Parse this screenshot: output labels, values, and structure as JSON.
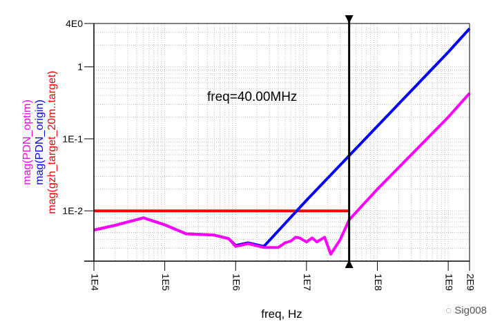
{
  "chart_data": {
    "type": "line",
    "xlabel": "freq, Hz",
    "xscale": "log",
    "yscale": "log",
    "xlim": [
      10000,
      2000000000
    ],
    "ylim": [
      0.002,
      4
    ],
    "x_ticks": [
      {
        "value": 10000,
        "label": "1E4"
      },
      {
        "value": 100000,
        "label": "1E5"
      },
      {
        "value": 1000000,
        "label": "1E6"
      },
      {
        "value": 10000000,
        "label": "1E7"
      },
      {
        "value": 100000000,
        "label": "1E8"
      },
      {
        "value": 1000000000,
        "label": "1E9"
      },
      {
        "value": 2000000000,
        "label": "2E9"
      }
    ],
    "y_ticks": [
      {
        "value": 4,
        "label": "4E0"
      },
      {
        "value": 1,
        "label": "1"
      },
      {
        "value": 0.1,
        "label": "1E-1"
      },
      {
        "value": 0.01,
        "label": "1E-2"
      }
    ],
    "grid": true,
    "marker": {
      "x": 40000000,
      "label": "freq=40.00MHz"
    },
    "series": [
      {
        "name": "mag(gzh_target_20m..target)",
        "color": "#ff0000",
        "x": [
          10000,
          40000000
        ],
        "y": [
          0.01,
          0.01
        ]
      },
      {
        "name": "mag(PDN_origin)",
        "color": "#0000ff",
        "x": [
          10000,
          20000,
          50000,
          100000,
          200000,
          500000,
          800000,
          1000000,
          1500000,
          2500000,
          10000000,
          100000000,
          1000000000,
          2000000000
        ],
        "y": [
          0.0054,
          0.0063,
          0.008,
          0.0064,
          0.0048,
          0.0046,
          0.0041,
          0.0033,
          0.0036,
          0.0032,
          0.014,
          0.15,
          1.6,
          3.4
        ]
      },
      {
        "name": "mag(PDN_optim)",
        "color": "#ff00ff",
        "x": [
          10000,
          20000,
          50000,
          100000,
          200000,
          500000,
          800000,
          1000000,
          1500000,
          2500000,
          4000000,
          5000000,
          6000000,
          7000000,
          8000000,
          10000000,
          12000000,
          14000000,
          18000000,
          22000000,
          30000000,
          40000000,
          100000000,
          1000000000,
          2000000000
        ],
        "y": [
          0.0054,
          0.0063,
          0.008,
          0.0064,
          0.0048,
          0.0046,
          0.0041,
          0.0032,
          0.0035,
          0.0031,
          0.0031,
          0.0036,
          0.0038,
          0.0043,
          0.0042,
          0.0037,
          0.0042,
          0.0037,
          0.0043,
          0.0025,
          0.004,
          0.0075,
          0.02,
          0.2,
          0.43
        ]
      }
    ]
  },
  "watermark": "Sig008"
}
